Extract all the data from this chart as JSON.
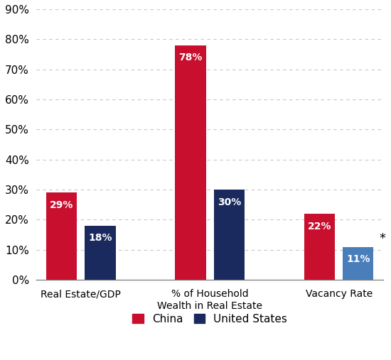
{
  "categories": [
    "Real Estate/GDP",
    "% of Household\nWealth in Real Estate",
    "Vacancy Rate"
  ],
  "china_values": [
    29,
    78,
    22
  ],
  "us_values": [
    18,
    30,
    11
  ],
  "china_color": "#C8102E",
  "us_color": "#1B2A5E",
  "us_vacancy_color": "#4A7EBB",
  "bar_width": 0.38,
  "ylim": [
    0,
    90
  ],
  "yticks": [
    0,
    10,
    20,
    30,
    40,
    50,
    60,
    70,
    80,
    90
  ],
  "label_fontsize": 10,
  "tick_fontsize": 11,
  "legend_fontsize": 11,
  "value_fontsize": 10,
  "china_label": "China",
  "us_label": "United States",
  "asterisk_category": 2,
  "background_color": "#FFFFFF",
  "grid_color": "#C8C8C8"
}
